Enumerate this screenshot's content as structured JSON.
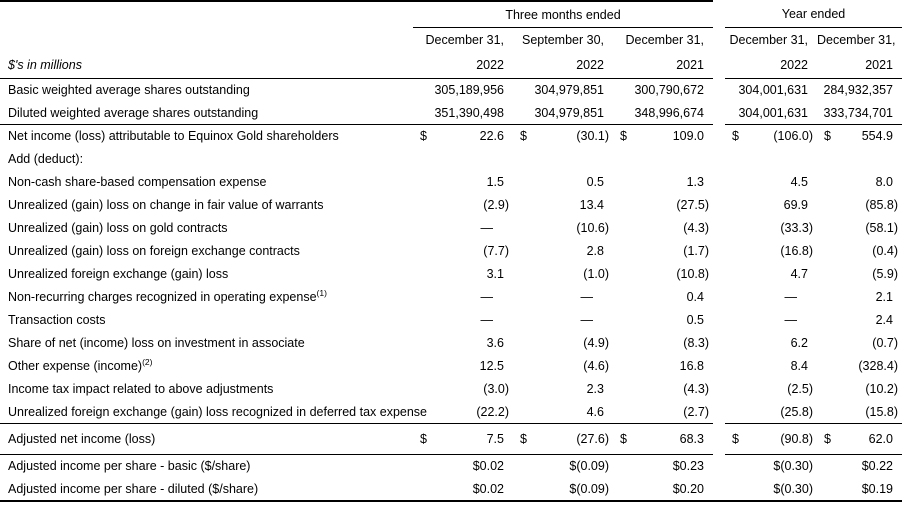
{
  "colors": {
    "background": "#ffffff",
    "text": "#000000",
    "rule": "#000000"
  },
  "table": {
    "unit_label": "$'s in millions",
    "groups": [
      {
        "label": "Three months ended"
      },
      {
        "label": "Year ended"
      }
    ],
    "columns": [
      {
        "date": "December 31,",
        "year": "2022"
      },
      {
        "date": "September 30,",
        "year": "2022"
      },
      {
        "date": "December 31,",
        "year": "2021"
      },
      {
        "date": "December 31,",
        "year": "2022"
      },
      {
        "date": "December 31,",
        "year": "2021"
      }
    ],
    "rows": [
      {
        "label": "Basic weighted average shares outstanding",
        "values": [
          "305,189,956",
          "304,979,851",
          "300,790,672",
          "304,001,631",
          "284,932,357"
        ]
      },
      {
        "label": "Diluted weighted average shares outstanding",
        "values": [
          "351,390,498",
          "304,979,851",
          "348,996,674",
          "304,001,631",
          "333,734,701"
        ],
        "rule_below": true
      },
      {
        "label": "Net income (loss) attributable to Equinox Gold shareholders",
        "currency": "$",
        "values": [
          "22.6",
          "(30.1)",
          "109.0",
          "(106.0)",
          "554.9"
        ]
      },
      {
        "label": "Add (deduct):",
        "values": null
      },
      {
        "label": "Non-cash share-based compensation expense",
        "values": [
          "1.5",
          "0.5",
          "1.3",
          "4.5",
          "8.0"
        ]
      },
      {
        "label": "Unrealized (gain) loss on change in fair value of warrants",
        "values": [
          "(2.9)",
          "13.4",
          "(27.5)",
          "69.9",
          "(85.8)"
        ]
      },
      {
        "label": "Unrealized (gain) loss on gold contracts",
        "values": [
          "—",
          "(10.6)",
          "(4.3)",
          "(33.3)",
          "(58.1)"
        ]
      },
      {
        "label": "Unrealized (gain) loss on foreign exchange contracts",
        "values": [
          "(7.7)",
          "2.8",
          "(1.7)",
          "(16.8)",
          "(0.4)"
        ]
      },
      {
        "label": "Unrealized foreign exchange (gain) loss",
        "values": [
          "3.1",
          "(1.0)",
          "(10.8)",
          "4.7",
          "(5.9)"
        ]
      },
      {
        "label": "Non-recurring charges recognized in operating expense",
        "sup": "(1)",
        "values": [
          "—",
          "—",
          "0.4",
          "—",
          "2.1"
        ]
      },
      {
        "label": "Transaction costs",
        "values": [
          "—",
          "—",
          "0.5",
          "—",
          "2.4"
        ]
      },
      {
        "label": "Share of net (income) loss on investment in associate",
        "values": [
          "3.6",
          "(4.9)",
          "(8.3)",
          "6.2",
          "(0.7)"
        ]
      },
      {
        "label": "Other expense (income)",
        "sup": "(2)",
        "values": [
          "12.5",
          "(4.6)",
          "16.8",
          "8.4",
          "(328.4)"
        ]
      },
      {
        "label": "Income tax impact related to above adjustments",
        "values": [
          "(3.0)",
          "2.3",
          "(4.3)",
          "(2.5)",
          "(10.2)"
        ]
      },
      {
        "label": "Unrealized foreign exchange (gain) loss recognized in deferred tax expense",
        "values": [
          "(22.2)",
          "4.6",
          "(2.7)",
          "(25.8)",
          "(15.8)"
        ],
        "rule_below": true
      },
      {
        "label": "Adjusted net income (loss)",
        "currency": "$",
        "values": [
          "7.5",
          "(27.6)",
          "68.3",
          "(90.8)",
          "62.0"
        ],
        "rule_below": true,
        "tall": true
      },
      {
        "label": "Adjusted income per share - basic ($/share)",
        "values": [
          "$0.02",
          "$(0.09)",
          "$0.23",
          "$(0.30)",
          "$0.22"
        ]
      },
      {
        "label": "Adjusted income per share - diluted ($/share)",
        "values": [
          "$0.02",
          "$(0.09)",
          "$0.20",
          "$(0.30)",
          "$0.19"
        ]
      }
    ]
  }
}
